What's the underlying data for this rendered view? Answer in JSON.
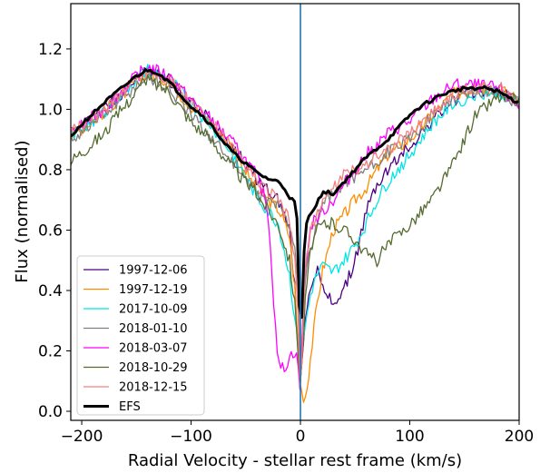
{
  "chart_data": {
    "type": "line",
    "xlabel": "Radial Velocity - stellar rest frame (km/s)",
    "ylabel": "Flux (normalised)",
    "xlim": [
      -210,
      200
    ],
    "ylim": [
      -0.03,
      1.35
    ],
    "xticks": [
      -200,
      -100,
      0,
      100,
      200
    ],
    "xtick_labels": [
      "−200",
      "−100",
      "0",
      "100",
      "200"
    ],
    "yticks": [
      0.0,
      0.2,
      0.4,
      0.6,
      0.8,
      1.0,
      1.2
    ],
    "ytick_labels": [
      "0.0",
      "0.2",
      "0.4",
      "0.6",
      "0.8",
      "1.0",
      "1.2"
    ],
    "grid": false,
    "legend_position": "lower-left",
    "vline": {
      "x": 0,
      "color": "#1f77b4"
    },
    "series": [
      {
        "name": "1997-12-06",
        "color": "#4b0082",
        "width": 1.3,
        "x": [
          -210,
          -180,
          -150,
          -140,
          -120,
          -100,
          -80,
          -60,
          -40,
          -20,
          -10,
          -5,
          -2,
          0,
          2,
          5,
          10,
          15,
          20,
          30,
          40,
          50,
          60,
          70,
          80,
          100,
          120,
          140,
          160,
          180,
          200
        ],
        "y": [
          0.92,
          1.0,
          1.1,
          1.13,
          1.1,
          1.02,
          0.96,
          0.87,
          0.77,
          0.7,
          0.6,
          0.4,
          0.2,
          0.06,
          0.2,
          0.34,
          0.42,
          0.48,
          0.4,
          0.36,
          0.4,
          0.5,
          0.66,
          0.75,
          0.8,
          0.88,
          0.96,
          1.03,
          1.06,
          1.06,
          1.02
        ]
      },
      {
        "name": "1997-12-19",
        "color": "#ff8c00",
        "width": 1.3,
        "x": [
          -210,
          -180,
          -150,
          -140,
          -120,
          -100,
          -80,
          -60,
          -40,
          -20,
          -10,
          -5,
          -2,
          0,
          2,
          5,
          10,
          15,
          20,
          30,
          40,
          50,
          60,
          70,
          80,
          100,
          120,
          140,
          160,
          180,
          200
        ],
        "y": [
          0.91,
          0.99,
          1.09,
          1.12,
          1.09,
          1.01,
          0.95,
          0.86,
          0.73,
          0.67,
          0.58,
          0.4,
          0.2,
          0.08,
          0.05,
          0.05,
          0.2,
          0.35,
          0.46,
          0.6,
          0.65,
          0.7,
          0.74,
          0.8,
          0.85,
          0.9,
          0.98,
          1.05,
          1.07,
          1.07,
          1.03
        ]
      },
      {
        "name": "2017-10-09",
        "color": "#00e5e5",
        "width": 1.3,
        "x": [
          -210,
          -180,
          -150,
          -140,
          -120,
          -100,
          -80,
          -60,
          -40,
          -20,
          -10,
          -5,
          -2,
          0,
          2,
          5,
          10,
          15,
          20,
          30,
          40,
          50,
          60,
          70,
          80,
          100,
          120,
          140,
          160,
          180,
          200
        ],
        "y": [
          0.91,
          0.99,
          1.1,
          1.13,
          1.1,
          1.02,
          0.94,
          0.84,
          0.71,
          0.62,
          0.45,
          0.3,
          0.2,
          0.15,
          0.2,
          0.3,
          0.4,
          0.45,
          0.48,
          0.46,
          0.5,
          0.55,
          0.62,
          0.7,
          0.76,
          0.85,
          0.95,
          1.02,
          1.05,
          1.06,
          1.02
        ]
      },
      {
        "name": "2018-01-10",
        "color": "#808080",
        "width": 1.3,
        "x": [
          -210,
          -180,
          -150,
          -140,
          -120,
          -100,
          -80,
          -60,
          -40,
          -20,
          -10,
          -5,
          -2,
          0,
          2,
          5,
          10,
          15,
          20,
          30,
          40,
          50,
          60,
          70,
          80,
          100,
          120,
          140,
          160,
          180,
          200
        ],
        "y": [
          0.9,
          0.98,
          1.08,
          1.11,
          1.07,
          0.98,
          0.9,
          0.82,
          0.72,
          0.68,
          0.62,
          0.55,
          0.4,
          0.14,
          0.3,
          0.45,
          0.55,
          0.62,
          0.68,
          0.72,
          0.76,
          0.78,
          0.8,
          0.82,
          0.86,
          0.9,
          0.98,
          1.04,
          1.06,
          1.06,
          1.02
        ]
      },
      {
        "name": "2018-03-07",
        "color": "#ff00ff",
        "width": 1.3,
        "x": [
          -210,
          -180,
          -150,
          -140,
          -120,
          -100,
          -80,
          -60,
          -40,
          -30,
          -25,
          -20,
          -15,
          -10,
          -5,
          -2,
          0,
          2,
          5,
          10,
          20,
          30,
          40,
          50,
          60,
          70,
          80,
          100,
          120,
          140,
          160,
          180,
          200
        ],
        "y": [
          0.92,
          1.0,
          1.11,
          1.14,
          1.11,
          1.03,
          0.96,
          0.88,
          0.78,
          0.68,
          0.4,
          0.15,
          0.14,
          0.18,
          0.2,
          0.15,
          0.06,
          0.3,
          0.5,
          0.62,
          0.66,
          0.7,
          0.75,
          0.8,
          0.85,
          0.88,
          0.92,
          0.96,
          1.03,
          1.08,
          1.08,
          1.07,
          1.01
        ]
      },
      {
        "name": "2018-10-29",
        "color": "#556b2f",
        "width": 1.3,
        "x": [
          -210,
          -180,
          -150,
          -140,
          -120,
          -100,
          -80,
          -60,
          -40,
          -20,
          -10,
          -5,
          -2,
          0,
          2,
          5,
          10,
          15,
          20,
          30,
          40,
          50,
          60,
          70,
          80,
          100,
          120,
          140,
          160,
          180,
          200
        ],
        "y": [
          0.83,
          0.92,
          1.06,
          1.1,
          1.06,
          0.96,
          0.89,
          0.8,
          0.72,
          0.62,
          0.5,
          0.35,
          0.2,
          0.08,
          0.2,
          0.4,
          0.55,
          0.6,
          0.62,
          0.62,
          0.6,
          0.57,
          0.52,
          0.5,
          0.55,
          0.62,
          0.7,
          0.82,
          0.98,
          1.04,
          1.03
        ]
      },
      {
        "name": "2018-12-15",
        "color": "#f08080",
        "width": 1.3,
        "x": [
          -210,
          -180,
          -150,
          -140,
          -120,
          -100,
          -80,
          -60,
          -40,
          -20,
          -10,
          -5,
          -2,
          0,
          2,
          5,
          10,
          15,
          20,
          30,
          40,
          50,
          60,
          70,
          80,
          100,
          120,
          140,
          160,
          180,
          200
        ],
        "y": [
          0.92,
          1.0,
          1.1,
          1.13,
          1.1,
          1.02,
          0.95,
          0.86,
          0.76,
          0.7,
          0.63,
          0.5,
          0.3,
          0.04,
          0.25,
          0.5,
          0.6,
          0.65,
          0.7,
          0.74,
          0.78,
          0.8,
          0.82,
          0.85,
          0.87,
          0.92,
          0.99,
          1.05,
          1.07,
          1.08,
          1.02
        ]
      },
      {
        "name": "EFS",
        "color": "#000000",
        "width": 3,
        "x": [
          -210,
          -200,
          -180,
          -160,
          -150,
          -140,
          -130,
          -120,
          -110,
          -100,
          -90,
          -80,
          -70,
          -60,
          -50,
          -40,
          -30,
          -20,
          -15,
          -10,
          -5,
          -2,
          0,
          2,
          5,
          10,
          15,
          20,
          25,
          30,
          40,
          50,
          60,
          70,
          80,
          90,
          100,
          110,
          120,
          130,
          140,
          150,
          160,
          170,
          180,
          190,
          200
        ],
        "y": [
          0.91,
          0.95,
          1.02,
          1.08,
          1.11,
          1.13,
          1.12,
          1.09,
          1.05,
          1.01,
          0.98,
          0.94,
          0.89,
          0.85,
          0.82,
          0.79,
          0.77,
          0.76,
          0.74,
          0.71,
          0.69,
          0.6,
          0.09,
          0.45,
          0.62,
          0.66,
          0.69,
          0.72,
          0.73,
          0.72,
          0.76,
          0.8,
          0.84,
          0.87,
          0.9,
          0.94,
          0.98,
          1.01,
          1.03,
          1.05,
          1.06,
          1.07,
          1.07,
          1.07,
          1.06,
          1.04,
          1.02
        ]
      }
    ]
  }
}
